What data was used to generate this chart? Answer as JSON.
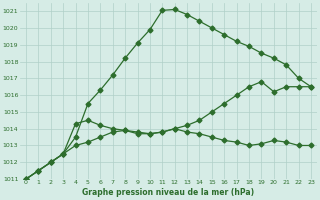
{
  "x": [
    0,
    1,
    2,
    3,
    4,
    5,
    6,
    7,
    8,
    9,
    10,
    11,
    12,
    13,
    14,
    15,
    16,
    17,
    18,
    19,
    20,
    21,
    22,
    23
  ],
  "line1": [
    1011.0,
    1011.5,
    1012.0,
    1012.5,
    1013.5,
    1015.5,
    1016.3,
    1017.2,
    1018.2,
    1019.1,
    1019.9,
    1021.05,
    1021.1,
    1020.8,
    1020.4,
    1020.0,
    1019.6,
    1019.2,
    1018.9,
    1018.5,
    1018.2,
    1017.8,
    1017.0,
    1016.5
  ],
  "line2": [
    1011.0,
    1011.5,
    1012.0,
    1012.5,
    1013.0,
    1013.2,
    1013.5,
    1013.8,
    1013.9,
    1013.8,
    1013.7,
    1013.8,
    1014.0,
    1014.2,
    1014.5,
    1015.0,
    1015.5,
    1016.0,
    1016.5,
    1016.8,
    1016.2,
    1016.5,
    1016.5,
    1016.5
  ],
  "line3": [
    1011.0,
    1011.5,
    1012.0,
    1012.5,
    1014.3,
    1014.5,
    1014.2,
    1014.0,
    1013.9,
    1013.7,
    1013.7,
    1013.8,
    1014.0,
    1013.8,
    1013.7,
    1013.5,
    1013.3,
    1013.2,
    1013.0,
    1013.1,
    1013.3,
    1013.2,
    1013.0,
    1013.0
  ],
  "bg_color": "#d6ece6",
  "grid_color": "#b0d0c8",
  "line_color": "#2d6e2d",
  "xlabel": "Graphe pression niveau de la mer (hPa)",
  "ylim": [
    1011,
    1021.5
  ],
  "xlim": [
    -0.5,
    23.5
  ],
  "yticks": [
    1011,
    1012,
    1013,
    1014,
    1015,
    1016,
    1017,
    1018,
    1019,
    1020,
    1021
  ],
  "xticks": [
    0,
    1,
    2,
    3,
    4,
    5,
    6,
    7,
    8,
    9,
    10,
    11,
    12,
    13,
    14,
    15,
    16,
    17,
    18,
    19,
    20,
    21,
    22,
    23
  ]
}
